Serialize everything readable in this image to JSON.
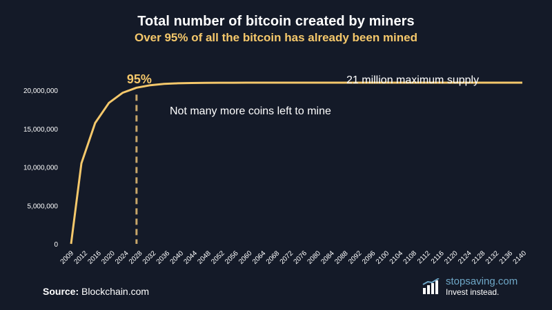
{
  "title": "Total number of bitcoin created by miners",
  "subtitle": "Over 95% of all the bitcoin has already been mined",
  "source_label": "Source:",
  "source_value": "Blockchain.com",
  "brand": {
    "name": "stopsaving.com",
    "tagline": "Invest instead.",
    "icon": "bar-chart-logo-icon"
  },
  "colors": {
    "background": "#141a28",
    "line": "#f5c86b",
    "dashed": "#c9a76a",
    "text": "#ffffff"
  },
  "chart_data": {
    "type": "line",
    "title": "Total number of bitcoin created by miners",
    "subtitle": "Over 95% of all the bitcoin has already been mined",
    "x_ticks": [
      "2009",
      "2012",
      "2016",
      "2020",
      "2024",
      "2028",
      "2032",
      "2036",
      "2040",
      "2044",
      "2048",
      "2052",
      "2056",
      "2060",
      "2064",
      "2068",
      "2072",
      "2076",
      "2080",
      "2084",
      "2088",
      "2092",
      "2096",
      "2100",
      "2104",
      "2108",
      "2112",
      "2116",
      "2120",
      "2124",
      "2128",
      "2132",
      "2136",
      "2140"
    ],
    "y_ticks": [
      "0",
      "5,000,000",
      "10,000,000",
      "15,000,000",
      "20,000,000"
    ],
    "y_tick_values": [
      0,
      5000000,
      10000000,
      15000000,
      20000000
    ],
    "ylim": [
      0,
      21000000
    ],
    "series": [
      {
        "x": [
          2009,
          2012,
          2016,
          2020,
          2024,
          2028,
          2032,
          2036,
          2040,
          2044,
          2048,
          2052,
          2056,
          2060,
          2140
        ],
        "values": [
          0,
          10500000,
          15750000,
          18375000,
          19687500,
          20343750,
          20671875,
          20835938,
          20917969,
          20958984,
          20979492,
          20989746,
          20994873,
          20997437,
          21000000
        ]
      }
    ],
    "annotations": [
      {
        "text": "95%",
        "x": 2028
      },
      {
        "text": "21 million maximum supply"
      },
      {
        "text": "Not many more coins left to mine"
      }
    ],
    "grid": false,
    "legend": "none"
  }
}
